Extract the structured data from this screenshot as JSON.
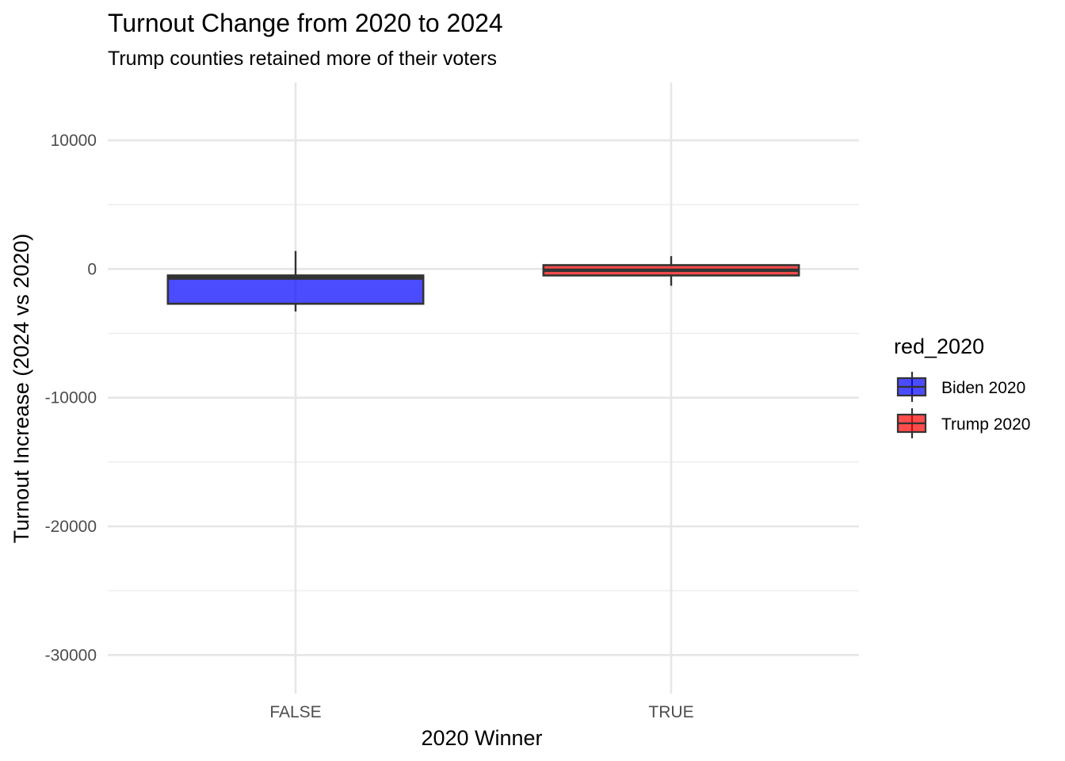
{
  "chart_data": {
    "type": "boxplot",
    "title": "Turnout Change from 2020 to 2024",
    "subtitle": "Trump counties retained more of their voters",
    "xlabel": "2020 Winner",
    "ylabel": "Turnout Increase (2024 vs 2020)",
    "ylim": [
      -33000,
      14500
    ],
    "y_ticks": [
      10000,
      0,
      -10000,
      -20000,
      -30000
    ],
    "y_tick_labels": [
      "10000",
      "0",
      "-10000",
      "-20000",
      "-30000"
    ],
    "categories": [
      "FALSE",
      "TRUE"
    ],
    "grid": true,
    "legend": {
      "title": "red_2020",
      "position": "right"
    },
    "series": [
      {
        "name": "Biden 2020",
        "category": "FALSE",
        "color": "#0000FF",
        "whisker_low": -3300,
        "q1": -2700,
        "median": -700,
        "q3": -500,
        "whisker_high": 1400
      },
      {
        "name": "Trump 2020",
        "category": "TRUE",
        "color": "#FF0000",
        "whisker_low": -1300,
        "q1": -500,
        "median": -100,
        "q3": 300,
        "whisker_high": 1000
      }
    ]
  }
}
